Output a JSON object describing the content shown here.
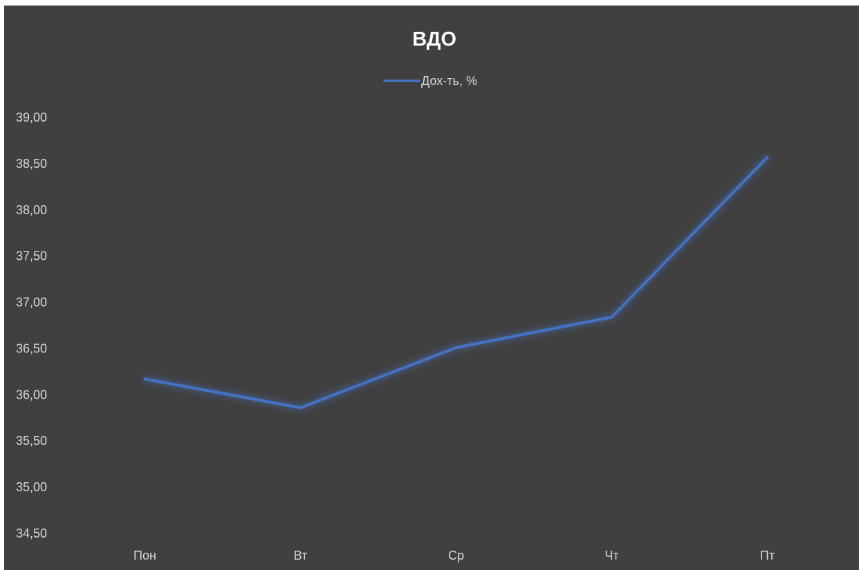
{
  "chart_data": {
    "type": "line",
    "title": "ВДО",
    "categories": [
      "Пон",
      "Вт",
      "Ср",
      "Чт",
      "Пт"
    ],
    "series": [
      {
        "name": "Дох-ть, %",
        "values": [
          36.17,
          35.86,
          36.51,
          36.84,
          38.57
        ],
        "color": "#4472c4"
      }
    ],
    "y_ticks": [
      "34,50",
      "35,00",
      "35,50",
      "36,00",
      "36,50",
      "37,00",
      "37,50",
      "38,00",
      "38,50",
      "39,00"
    ],
    "ylim": [
      34.5,
      39.0
    ],
    "grid": false,
    "legend_position": "top-center",
    "colors": {
      "background": "#404040",
      "text": "#d9d9d9",
      "title": "#ffffff",
      "line": "#4472c4"
    }
  }
}
